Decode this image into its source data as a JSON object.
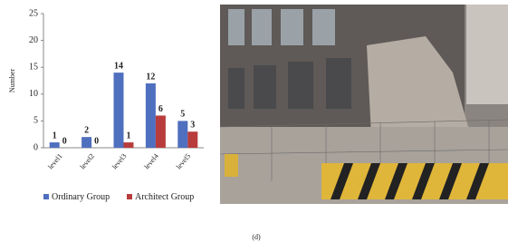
{
  "chart_data": {
    "type": "bar",
    "y_label": "Number",
    "categories": [
      "level1",
      "level2",
      "level3",
      "level4",
      "level5"
    ],
    "series": [
      {
        "name": "Ordinary Group",
        "color": "#4f6fbf",
        "values": [
          1,
          2,
          14,
          12,
          5
        ]
      },
      {
        "name": "Architect Group",
        "color": "#b83c3c",
        "values": [
          0,
          0,
          1,
          6,
          3
        ]
      }
    ],
    "ylim": [
      0,
      25
    ],
    "yticks": [
      0,
      5,
      10,
      15,
      20,
      25
    ]
  },
  "caption": "(d)"
}
